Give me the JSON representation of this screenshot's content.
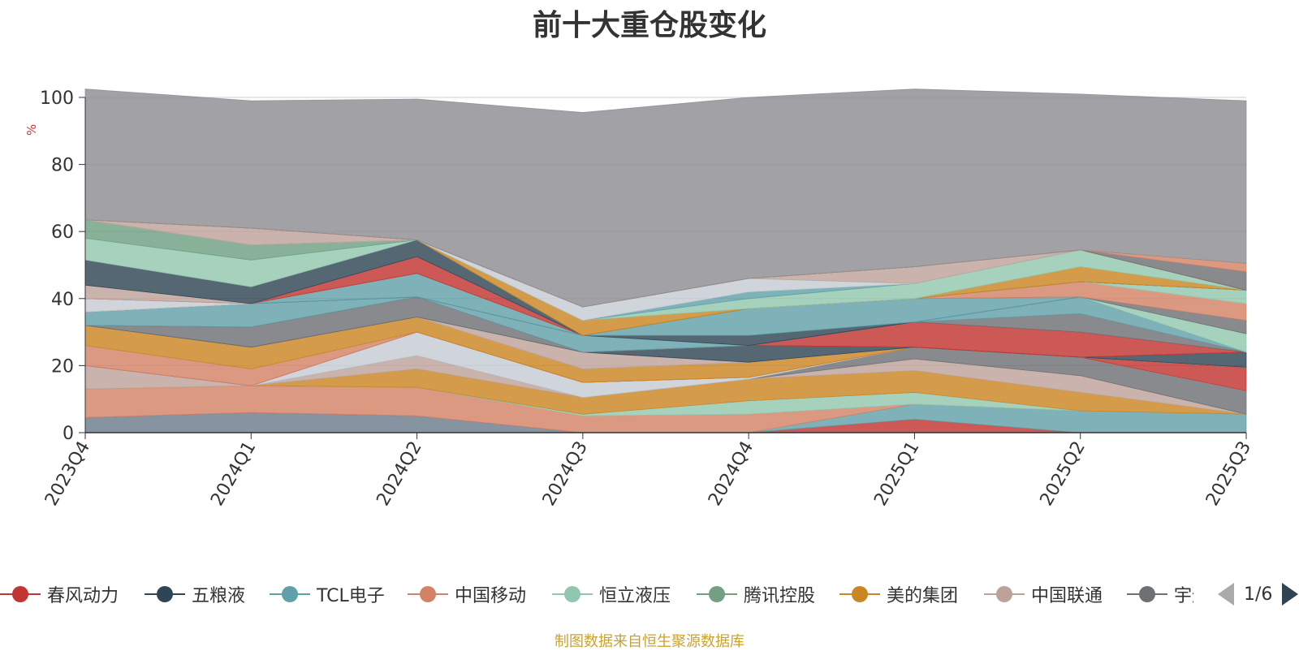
{
  "chart_data": {
    "type": "area",
    "stacked": true,
    "title": "前十大重仓股变化",
    "ylabel": "%",
    "ylim": [
      0,
      100
    ],
    "yticks": [
      0,
      20,
      40,
      60,
      80,
      100
    ],
    "categories": [
      "2023Q4",
      "2024Q1",
      "2024Q2",
      "2024Q3",
      "2024Q4",
      "2025Q1",
      "2025Q2",
      "2025Q3"
    ],
    "grid": true,
    "legend_position": "bottom",
    "series": [
      {
        "name": "",
        "color": "#6b7b8c",
        "values": [
          4.5,
          6,
          5,
          0,
          0,
          0,
          0,
          0
        ]
      },
      {
        "name": "",
        "color": "#c23531",
        "values": [
          0,
          0,
          0,
          0,
          0,
          4,
          0,
          0
        ]
      },
      {
        "name": "",
        "color": "#61a0a8",
        "values": [
          0,
          0,
          0,
          0,
          0,
          4.5,
          6.5,
          5.5
        ]
      },
      {
        "name": "",
        "color": "#d48265",
        "values": [
          8.5,
          8,
          8.5,
          5,
          5.5,
          0,
          0,
          0
        ]
      },
      {
        "name": "",
        "color": "#91c7ae",
        "values": [
          0,
          0,
          0,
          0.5,
          4,
          3.5,
          0,
          0
        ]
      },
      {
        "name": "",
        "color": "#ca8622",
        "values": [
          0,
          0,
          5.5,
          5,
          6.5,
          6.5,
          5.5,
          0
        ]
      },
      {
        "name": "",
        "color": "#bda29a",
        "values": [
          7,
          0,
          4,
          0,
          0,
          3.5,
          5,
          0
        ]
      },
      {
        "name": "",
        "color": "#6e7074",
        "values": [
          0,
          0,
          0,
          0,
          0,
          3.5,
          5.5,
          7
        ]
      },
      {
        "name": "",
        "color": "#c4ccd3",
        "values": [
          0,
          0,
          7,
          4.5,
          0.5,
          0,
          0,
          0
        ]
      },
      {
        "name": "",
        "color": "#c23531",
        "values": [
          0,
          0,
          0,
          0,
          0,
          0,
          0,
          7
        ]
      },
      {
        "name": "",
        "color": "#d48265",
        "values": [
          6,
          5,
          0,
          0,
          0,
          0,
          0,
          0
        ]
      },
      {
        "name": "",
        "color": "#ca8622",
        "values": [
          6,
          6.5,
          4.5,
          4,
          4.5,
          0,
          0,
          0
        ]
      },
      {
        "name": "",
        "color": "#91c7ae",
        "values": [
          0,
          0,
          0,
          0,
          0,
          0,
          0,
          0
        ]
      },
      {
        "name": "",
        "color": "#bda29a",
        "values": [
          0,
          0,
          0,
          5,
          0,
          0,
          0,
          0
        ]
      },
      {
        "name": "",
        "color": "#2f4554",
        "values": [
          0,
          0,
          0,
          0,
          5,
          0,
          0,
          4.5
        ]
      },
      {
        "name": "",
        "color": "#6e7074",
        "values": [
          0,
          6,
          6,
          0,
          0,
          0,
          0,
          0
        ]
      },
      {
        "name": "",
        "color": "#c23531",
        "values": [
          0,
          0,
          0,
          0,
          0,
          7.5,
          7.5,
          0
        ]
      },
      {
        "name": "",
        "color": "#6e7074",
        "values": [
          0,
          0,
          0,
          0,
          0,
          0,
          5.5,
          0
        ]
      },
      {
        "name": "",
        "color": "#61a0a8",
        "values": [
          4,
          7,
          0,
          5,
          0,
          0,
          5,
          0
        ]
      },
      {
        "name": "",
        "color": "#2f4554",
        "values": [
          0,
          0,
          0,
          0,
          3,
          0,
          0,
          0
        ]
      },
      {
        "name": "",
        "color": "#61a0a8",
        "values": [
          0,
          0,
          7,
          0,
          8,
          7,
          0,
          0
        ]
      },
      {
        "name": "",
        "color": "#91c7ae",
        "values": [
          0,
          0,
          0,
          0,
          0,
          0,
          0,
          5.5
        ]
      },
      {
        "name": "",
        "color": "#6e7074",
        "values": [
          0,
          0,
          0,
          0,
          0,
          0,
          0,
          4
        ]
      },
      {
        "name": "",
        "color": "#d48265",
        "values": [
          0,
          0,
          0,
          0,
          0,
          0,
          4.5,
          5
        ]
      },
      {
        "name": "",
        "color": "#c4ccd3",
        "values": [
          4,
          0,
          0,
          0,
          0,
          0,
          0,
          0
        ]
      },
      {
        "name": "",
        "color": "#91c7ae",
        "values": [
          0,
          0,
          0,
          0,
          0,
          0,
          0,
          4
        ]
      },
      {
        "name": "",
        "color": "#c23531",
        "values": [
          0,
          0,
          5,
          0,
          0,
          0,
          0,
          0
        ]
      },
      {
        "name": "",
        "color": "#bda29a",
        "values": [
          4,
          0,
          0,
          0,
          0,
          0,
          0,
          0
        ]
      },
      {
        "name": "",
        "color": "#2f4554",
        "values": [
          7.5,
          5,
          5,
          0,
          0,
          0,
          0,
          0
        ]
      },
      {
        "name": "",
        "color": "#91c7ae",
        "values": [
          6.5,
          8,
          0,
          0,
          0,
          0,
          0,
          0
        ]
      },
      {
        "name": "",
        "color": "#6f9f82",
        "values": [
          5.5,
          4.5,
          0,
          0,
          0,
          0,
          0,
          0
        ]
      },
      {
        "name": "",
        "color": "#ca8622",
        "values": [
          0,
          0,
          0,
          4.5,
          0,
          0,
          4.5,
          0
        ]
      },
      {
        "name": "",
        "color": "#91c7ae",
        "values": [
          0,
          0,
          0,
          0,
          3,
          4.5,
          5,
          0
        ]
      },
      {
        "name": "",
        "color": "#61a0a8",
        "values": [
          0,
          0,
          0,
          0,
          2,
          0,
          0,
          0
        ]
      },
      {
        "name": "",
        "color": "#c4ccd3",
        "values": [
          0,
          0,
          0,
          4,
          4,
          0,
          0,
          0
        ]
      },
      {
        "name": "",
        "color": "#bda29a",
        "values": [
          0,
          5,
          0,
          0,
          0,
          5,
          0,
          0
        ]
      },
      {
        "name": "",
        "color": "#ca8622",
        "values": [
          0,
          0,
          0,
          0,
          0,
          0,
          0,
          0
        ]
      },
      {
        "name": "",
        "color": "#6e7074",
        "values": [
          0,
          0,
          0,
          0,
          0,
          0,
          0,
          5.5
        ]
      },
      {
        "name": "",
        "color": "#d48265",
        "values": [
          0,
          0,
          0,
          0,
          0,
          0,
          0,
          2.5
        ]
      },
      {
        "name": "",
        "color": "#8d8e92",
        "values": [
          39,
          38,
          42,
          58,
          54,
          53,
          46.5,
          48.5
        ]
      }
    ],
    "legend": [
      {
        "name": "春风动力",
        "color": "#c23531"
      },
      {
        "name": "五粮液",
        "color": "#2f4554"
      },
      {
        "name": "TCL电子",
        "color": "#61a0a8"
      },
      {
        "name": "中国移动",
        "color": "#d48265"
      },
      {
        "name": "恒立液压",
        "color": "#91c7ae"
      },
      {
        "name": "腾讯控股",
        "color": "#749f83"
      },
      {
        "name": "美的集团",
        "color": "#ca8622"
      },
      {
        "name": "中国联通",
        "color": "#bda29a"
      },
      {
        "name": "宇通客车",
        "color": "#6e7074"
      }
    ],
    "legend_page": "1/6",
    "source_note": "制图数据来自恒生聚源数据库"
  }
}
